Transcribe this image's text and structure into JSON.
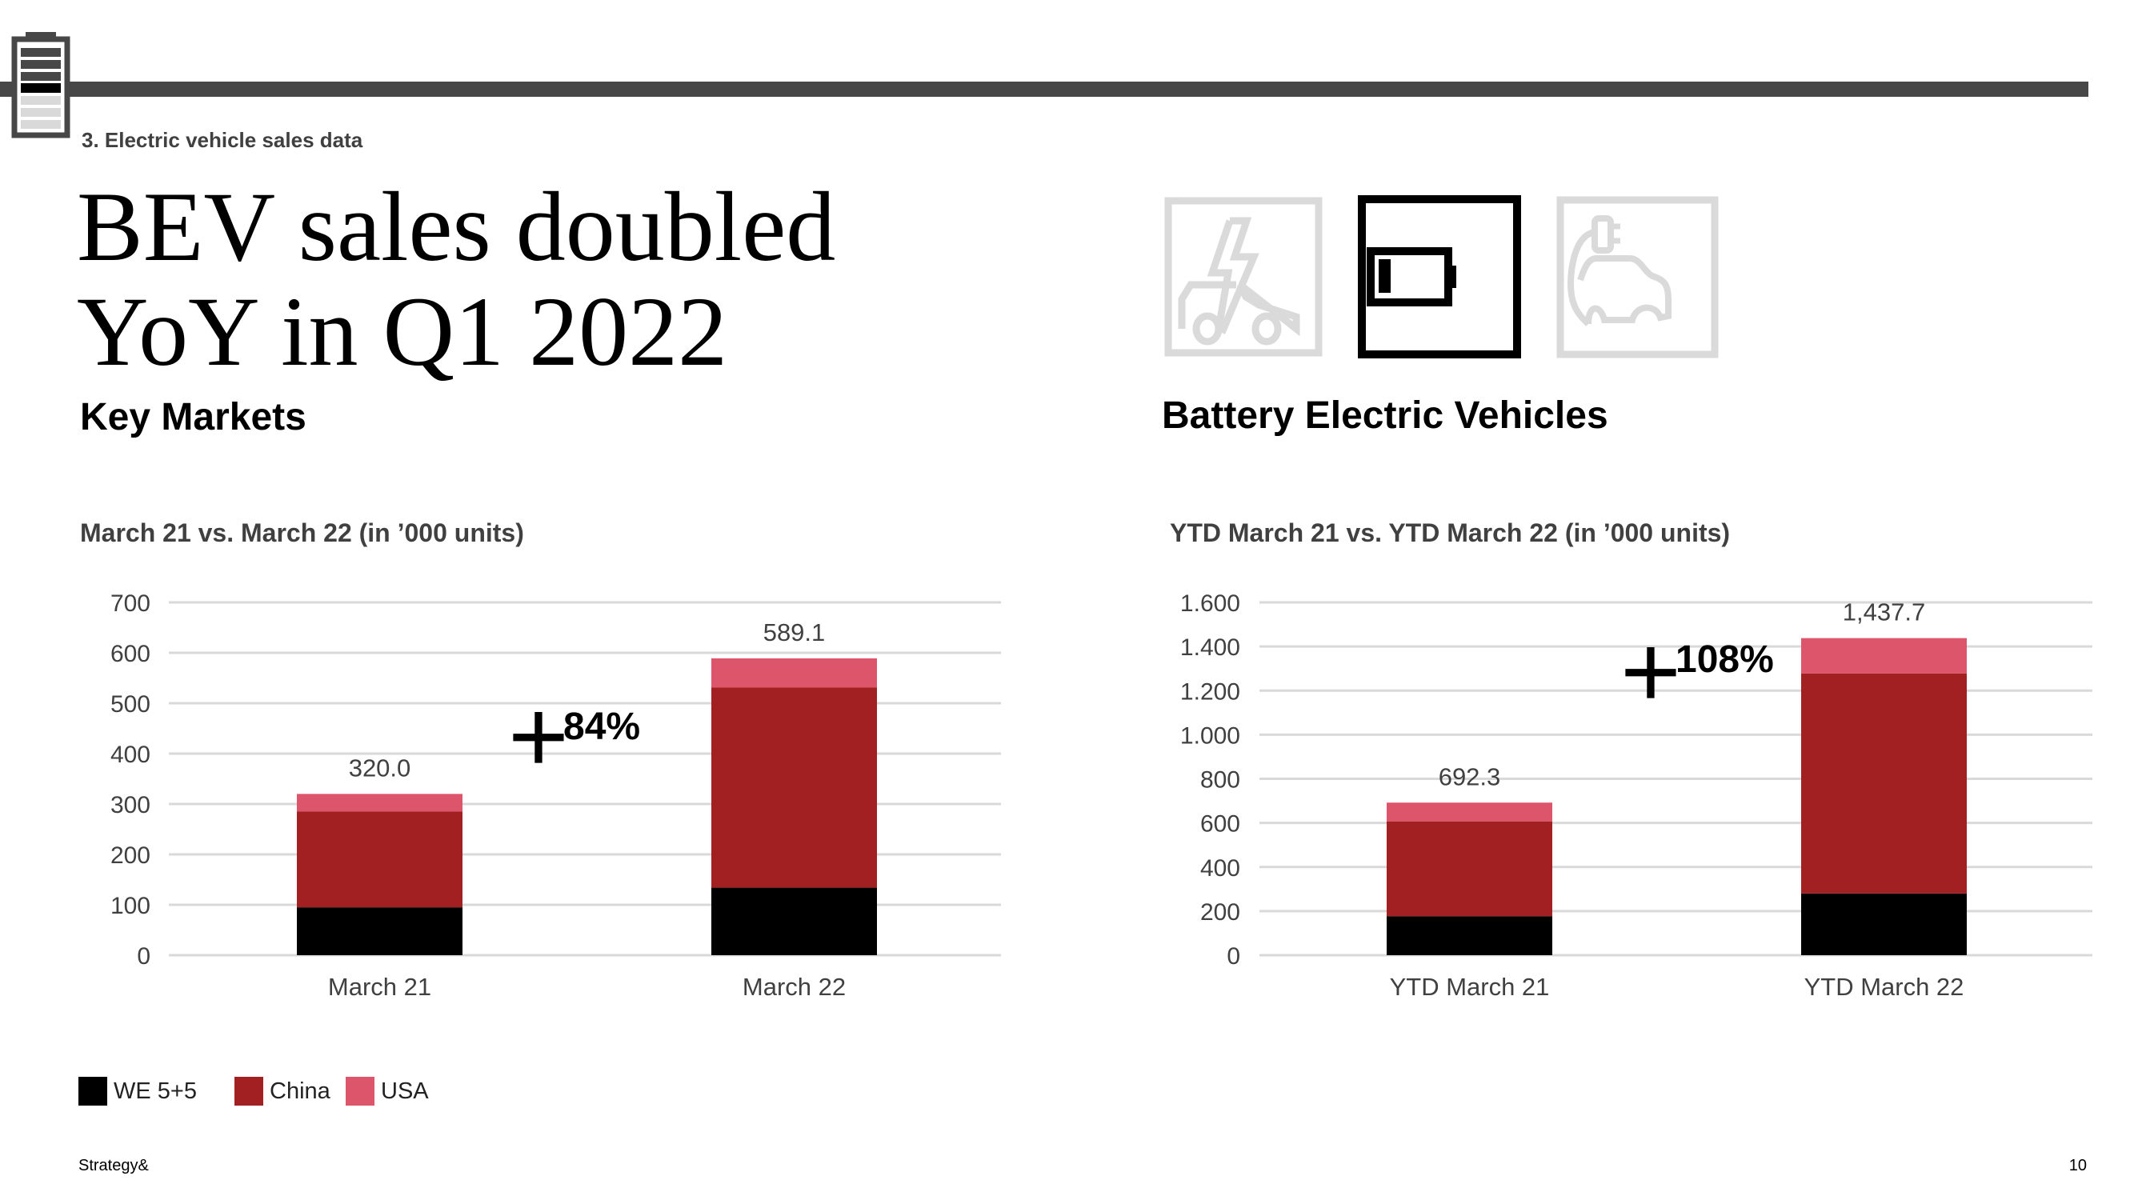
{
  "header": {
    "section": "3. Electric vehicle sales data"
  },
  "title": {
    "line1": "BEV sales doubled",
    "line2": "YoY in Q1 2022"
  },
  "left_heading": "Key Markets",
  "right_heading": "Battery Electric Vehicles",
  "icons": [
    "car-lightning-icon",
    "battery-icon",
    "electric-car-plug-icon"
  ],
  "colors": {
    "we": "#000000",
    "china": "#a21f22",
    "usa": "#dc556b",
    "bar": "#474747",
    "grid": "#d9d9d9"
  },
  "legend": [
    {
      "label": "WE 5+5",
      "color": "#000000"
    },
    {
      "label": "China",
      "color": "#a21f22"
    },
    {
      "label": "USA",
      "color": "#dc556b"
    }
  ],
  "footer": {
    "brand": "Strategy&",
    "page": "10"
  },
  "chart_data": [
    {
      "type": "bar",
      "stacked": true,
      "title": "March 21 vs. March 22 (in ’000 units)",
      "categories": [
        "March 21",
        "March 22"
      ],
      "series": [
        {
          "name": "WE 5+5",
          "values": [
            95,
            134
          ]
        },
        {
          "name": "China",
          "values": [
            190,
            397
          ]
        },
        {
          "name": "USA",
          "values": [
            35,
            58
          ]
        }
      ],
      "totals": [
        "320.0",
        "589.1"
      ],
      "ylim": [
        0,
        700
      ],
      "yticks": [
        0,
        100,
        200,
        300,
        400,
        500,
        600,
        700
      ],
      "ytick_labels": [
        "0",
        "100",
        "200",
        "300",
        "400",
        "500",
        "600",
        "700"
      ],
      "annotation": {
        "sign": "+",
        "text": "84%"
      },
      "grid": true
    },
    {
      "type": "bar",
      "stacked": true,
      "title": "YTD March 21 vs. YTD March 22 (in ’000 units)",
      "categories": [
        "YTD March 21",
        "YTD March 22"
      ],
      "series": [
        {
          "name": "WE 5+5",
          "values": [
            177,
            280
          ]
        },
        {
          "name": "China",
          "values": [
            430,
            998
          ]
        },
        {
          "name": "USA",
          "values": [
            85,
            160
          ]
        }
      ],
      "totals": [
        "692.3",
        "1,437.7"
      ],
      "ylim": [
        0,
        1600
      ],
      "yticks": [
        0,
        200,
        400,
        600,
        800,
        1000,
        1200,
        1400,
        1600
      ],
      "ytick_labels": [
        "0",
        "200",
        "400",
        "600",
        "800",
        "1.000",
        "1.200",
        "1.400",
        "1.600"
      ],
      "annotation": {
        "sign": "+",
        "text": "108%"
      },
      "grid": true
    }
  ]
}
